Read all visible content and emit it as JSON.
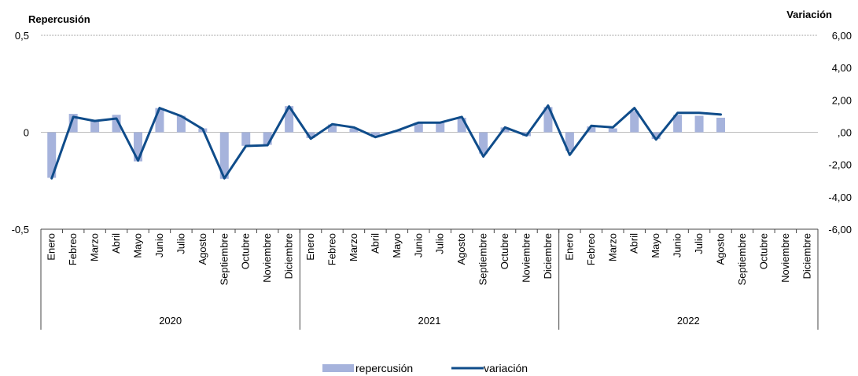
{
  "chart_data": {
    "type": "bar+line",
    "left_axis": {
      "title": "Repercusión",
      "ylim": [
        -0.5,
        0.5
      ],
      "tick_values": [
        -0.5,
        0,
        0.5
      ],
      "tick_labels": [
        "-0,5",
        "0",
        "0,5"
      ]
    },
    "right_axis": {
      "title": "Variación",
      "ylim": [
        -6,
        6
      ],
      "tick_values": [
        6,
        4,
        2,
        0,
        -2,
        -4,
        -6
      ],
      "tick_labels": [
        "6,00",
        "4,00",
        "2,00",
        ",00",
        "-2,00",
        "-4,00",
        "-6,00"
      ]
    },
    "years": [
      "2020",
      "2021",
      "2022"
    ],
    "months": [
      "Enero",
      "Febreo",
      "Marzo",
      "Abril",
      "Mayo",
      "Junio",
      "Julio",
      "Agosto",
      "Septiembre",
      "Octubre",
      "Noviembre",
      "Diciembre"
    ],
    "series": [
      {
        "name": "repercusión",
        "type": "bar",
        "axis": "left",
        "color": "#a6b3dc",
        "values": [
          -0.235,
          0.095,
          0.065,
          0.09,
          -0.15,
          0.125,
          0.085,
          0.02,
          -0.24,
          -0.07,
          -0.065,
          0.135,
          -0.03,
          0.04,
          0.02,
          -0.025,
          0.01,
          0.05,
          0.05,
          0.075,
          -0.11,
          0.025,
          -0.02,
          0.13,
          -0.095,
          0.03,
          0.02,
          0.11,
          -0.035,
          0.09,
          0.085,
          0.075,
          null,
          null,
          null,
          null
        ]
      },
      {
        "name": "variación",
        "type": "line",
        "axis": "right",
        "color": "#0f4c8a",
        "values": [
          -2.85,
          0.95,
          0.7,
          0.85,
          -1.75,
          1.5,
          1.0,
          0.2,
          -2.85,
          -0.85,
          -0.8,
          1.6,
          -0.4,
          0.5,
          0.3,
          -0.3,
          0.1,
          0.6,
          0.6,
          0.95,
          -1.5,
          0.3,
          -0.2,
          1.65,
          -1.4,
          0.4,
          0.3,
          1.5,
          -0.45,
          1.2,
          1.2,
          1.1,
          null,
          null,
          null,
          null
        ]
      }
    ],
    "grid": false,
    "legend_position": "bottom-center"
  }
}
